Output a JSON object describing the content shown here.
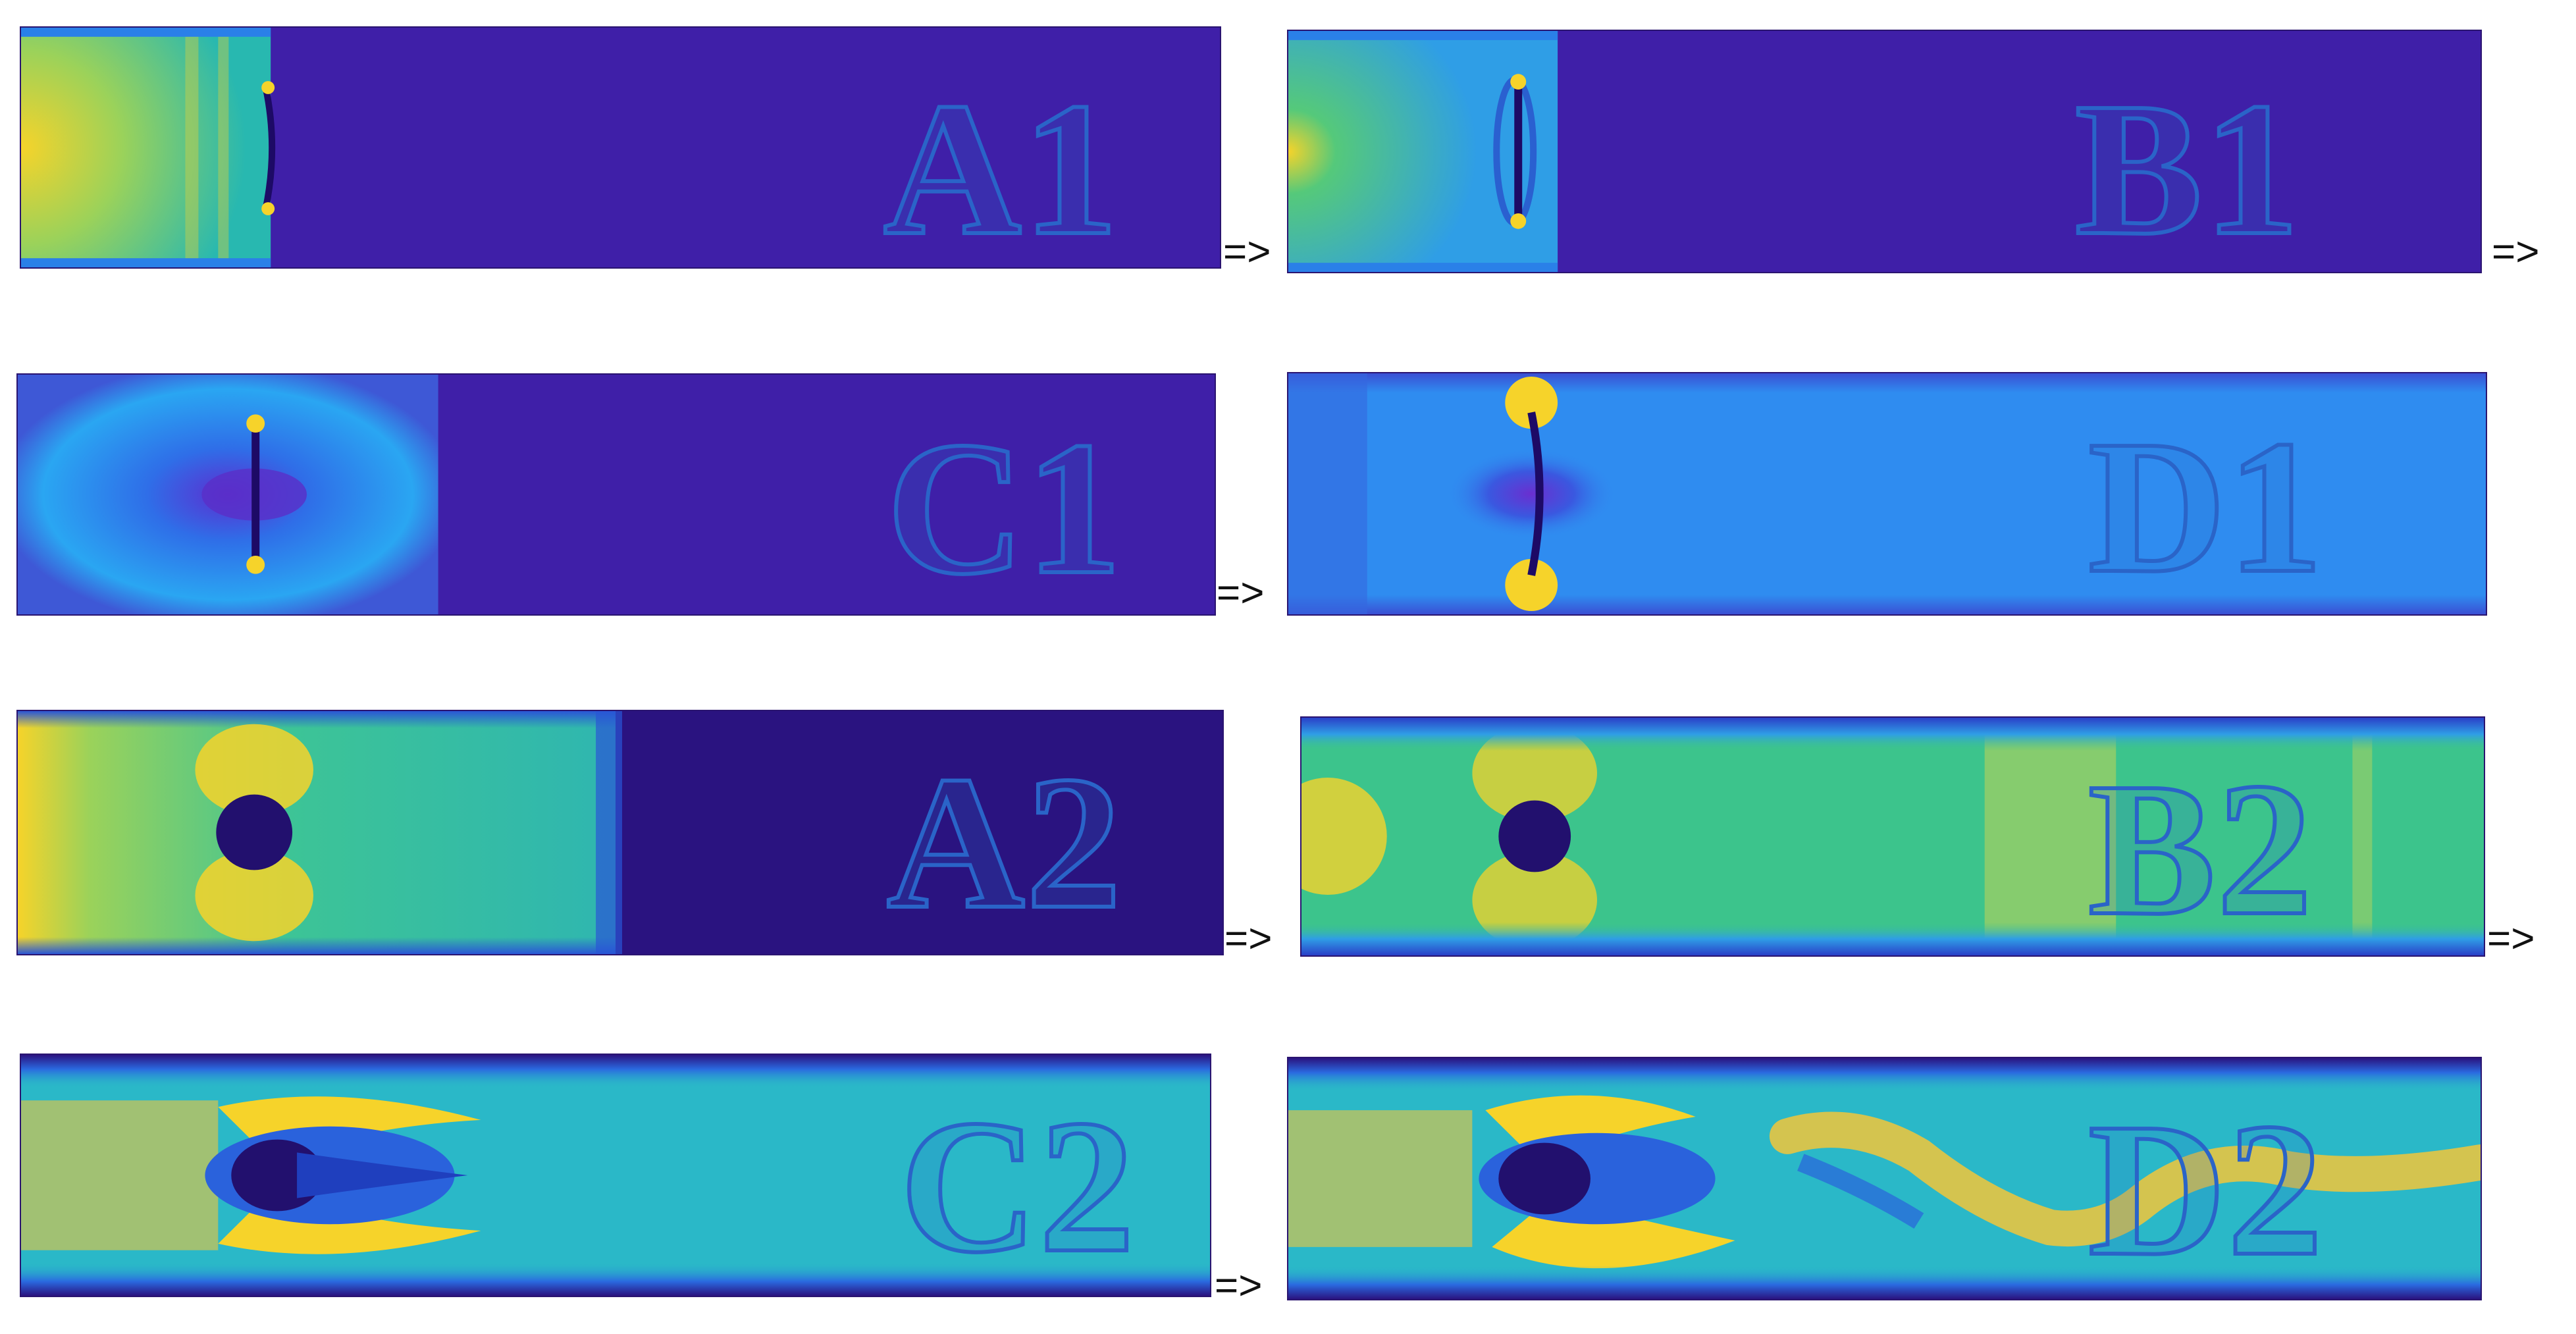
{
  "panels": {
    "a1": {
      "label": "A1"
    },
    "b1": {
      "label": "B1"
    },
    "c1": {
      "label": "C1"
    },
    "d1": {
      "label": "D1"
    },
    "a2": {
      "label": "A2"
    },
    "b2": {
      "label": "B2"
    },
    "c2": {
      "label": "C2"
    },
    "d2": {
      "label": "D2"
    }
  },
  "arrow_symbol": "=>",
  "colors": {
    "field_low": "#3f1fa8",
    "field_mid_blue": "#2f8cf0",
    "field_cyan": "#23b9c9",
    "field_green": "#39c48a",
    "field_yellow": "#f6d32a",
    "field_dark": "#1d0a66",
    "label_outline": "#2a64c8"
  }
}
